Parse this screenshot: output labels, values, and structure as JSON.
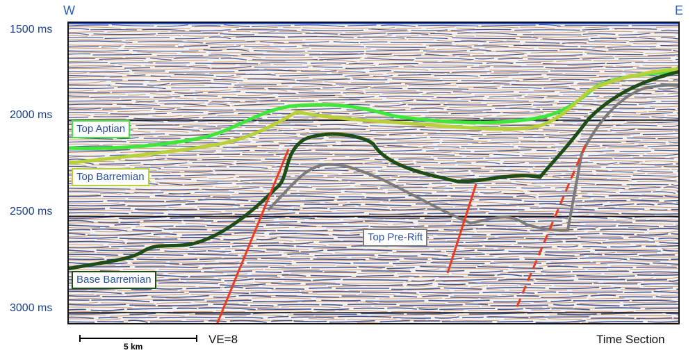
{
  "orientation": {
    "west": "W",
    "east": "E"
  },
  "time_axis": [
    {
      "label": "1500 ms",
      "value_ms": 1500
    },
    {
      "label": "2000 ms",
      "value_ms": 2000
    },
    {
      "label": "2500 ms",
      "value_ms": 2500
    },
    {
      "label": "3000 ms",
      "value_ms": 3000
    }
  ],
  "horizons": [
    {
      "name": "Top Aptian",
      "color": "#3fe63b"
    },
    {
      "name": "Top Barremian",
      "color": "#b8d13a"
    },
    {
      "name": "Base Barremian",
      "color": "#1e4d18"
    },
    {
      "name": "Top Pre-Rift",
      "color": "#7b7b7b"
    }
  ],
  "faults": {
    "color": "#f03a1e"
  },
  "seismic_colors": {
    "trough": "#10247a",
    "peak": "#c27434",
    "background": "#f3f1ef",
    "top_edge": "#1f4fe6"
  },
  "scale_bar": {
    "label": "5 km"
  },
  "vertical_exaggeration": "VE=8",
  "section_type": "Time Section"
}
